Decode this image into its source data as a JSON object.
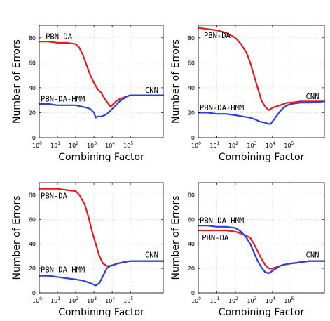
{
  "colors": {
    "PBN-DA": "#e8191d",
    "PBN-DA-HMM": "#2a3fe0"
  },
  "chart_data": [
    {
      "type": "line",
      "xlabel": "Combining Factor",
      "ylabel": "Number of Errors",
      "xscale": "log",
      "xlim": [
        0,
        6.8
      ],
      "ylim": [
        0,
        90
      ],
      "yticks": [
        0,
        20,
        40,
        60,
        80
      ],
      "xticks": [
        0,
        1,
        2,
        3,
        4,
        5
      ],
      "xtick_base": "10",
      "grid": true,
      "annotations": [
        {
          "text": "PBN-DA",
          "at": [
            0.35,
            79
          ]
        },
        {
          "text": "PBN-DA-HMM",
          "at": [
            -0.1,
            29
          ]
        },
        {
          "text": "CNN",
          "at": [
            5.8,
            36
          ]
        }
      ],
      "series": [
        {
          "name": "PBN-DA",
          "color": "#e8191d",
          "x": [
            0,
            0.5,
            1,
            1.5,
            2,
            2.2,
            2.4,
            2.6,
            2.8,
            3.0,
            3.2,
            3.4,
            3.6,
            3.8,
            3.9,
            4.0,
            4.2,
            4.4,
            4.6,
            4.8,
            5.0,
            5.5,
            6.0,
            6.8
          ],
          "values": [
            77,
            77,
            76,
            76,
            75,
            72,
            66,
            58,
            50,
            44,
            39,
            36,
            31,
            27,
            25,
            26,
            29,
            31,
            32,
            33,
            34,
            34,
            34,
            34
          ]
        },
        {
          "name": "PBN-DA-HMM",
          "color": "#2a3fe0",
          "x": [
            0,
            0.5,
            1,
            1.5,
            2,
            2.3,
            2.6,
            2.8,
            3.0,
            3.1,
            3.2,
            3.4,
            3.6,
            3.8,
            4.0,
            4.2,
            4.4,
            4.6,
            4.8,
            5.0,
            5.5,
            6.0,
            6.8
          ],
          "values": [
            27,
            27,
            26,
            26,
            26,
            25,
            24,
            23,
            20,
            16,
            17,
            17,
            18,
            20,
            23,
            26,
            29,
            31,
            33,
            34,
            34,
            34,
            34
          ]
        }
      ]
    },
    {
      "type": "line",
      "xlabel": "Combining Factor",
      "ylabel": "Number of Errors",
      "xscale": "log",
      "xlim": [
        0,
        6.8
      ],
      "ylim": [
        0,
        90
      ],
      "yticks": [
        0,
        20,
        40,
        60,
        80
      ],
      "xticks": [
        0,
        1,
        2,
        3,
        4,
        5
      ],
      "xtick_base": "10",
      "grid": true,
      "annotations": [
        {
          "text": "PBN-DA",
          "at": [
            0.3,
            80
          ]
        },
        {
          "text": "PBN-DA-HMM",
          "at": [
            -0.1,
            22
          ]
        },
        {
          "text": "CNN",
          "at": [
            5.8,
            31
          ]
        }
      ],
      "series": [
        {
          "name": "PBN-DA",
          "color": "#e8191d",
          "x": [
            0,
            0.5,
            1,
            1.5,
            2,
            2.3,
            2.6,
            2.8,
            3.0,
            3.2,
            3.4,
            3.6,
            3.8,
            4.0,
            4.2,
            4.4,
            4.6,
            4.8,
            5.0,
            5.5,
            6.0,
            6.8
          ],
          "values": [
            88,
            87,
            86,
            84,
            80,
            75,
            68,
            60,
            50,
            40,
            30,
            25,
            22,
            24,
            25,
            26,
            27,
            28,
            28,
            29,
            29,
            29
          ]
        },
        {
          "name": "PBN-DA-HMM",
          "color": "#2a3fe0",
          "x": [
            0,
            0.5,
            1,
            1.5,
            2,
            2.4,
            2.8,
            3.0,
            3.3,
            3.6,
            3.8,
            3.9,
            4.0,
            4.2,
            4.4,
            4.6,
            4.8,
            5.0,
            5.5,
            6.0,
            6.8
          ],
          "values": [
            20,
            20,
            19,
            19,
            18,
            17,
            16,
            15,
            13,
            12,
            11,
            11,
            13,
            17,
            21,
            24,
            26,
            27,
            28,
            28,
            29
          ]
        }
      ]
    },
    {
      "type": "line",
      "xlabel": "Combining Factor",
      "ylabel": "Number of Errors",
      "xscale": "log",
      "xlim": [
        0,
        6.8
      ],
      "ylim": [
        0,
        90
      ],
      "yticks": [
        0,
        20,
        40,
        60,
        80
      ],
      "xticks": [
        0,
        1,
        2,
        3,
        4,
        5
      ],
      "xtick_base": "10",
      "grid": true,
      "annotations": [
        {
          "text": "PBN-DA",
          "at": [
            -0.1,
            77
          ]
        },
        {
          "text": "PBN-DA-HMM",
          "at": [
            -0.1,
            17
          ]
        },
        {
          "text": "CNN",
          "at": [
            5.8,
            29
          ]
        }
      ],
      "series": [
        {
          "name": "PBN-DA",
          "color": "#e8191d",
          "x": [
            0,
            0.5,
            1,
            1.5,
            2,
            2.2,
            2.5,
            2.7,
            2.9,
            3.1,
            3.3,
            3.5,
            3.7,
            3.9,
            4.1,
            4.3,
            4.6,
            5.0,
            5.5,
            6.0,
            6.8
          ],
          "values": [
            85,
            85,
            85,
            84,
            83,
            80,
            72,
            62,
            50,
            40,
            30,
            24,
            22,
            22,
            23,
            24,
            25,
            26,
            26,
            26,
            26
          ]
        },
        {
          "name": "PBN-DA-HMM",
          "color": "#2a3fe0",
          "x": [
            0,
            0.5,
            1,
            1.5,
            2,
            2.4,
            2.8,
            3.1,
            3.3,
            3.5,
            3.7,
            3.9,
            4.1,
            4.3,
            4.6,
            5.0,
            5.5,
            6.0,
            6.8
          ],
          "values": [
            14,
            14,
            13,
            12,
            11,
            10,
            8,
            6,
            8,
            14,
            20,
            22,
            23,
            24,
            25,
            26,
            26,
            26,
            26
          ]
        }
      ]
    },
    {
      "type": "line",
      "xlabel": "Combining Factor",
      "ylabel": "Number of Errors",
      "xscale": "log",
      "xlim": [
        0,
        6.8
      ],
      "ylim": [
        0,
        90
      ],
      "yticks": [
        0,
        20,
        40,
        60,
        80
      ],
      "xticks": [
        0,
        1,
        2,
        3,
        4,
        5
      ],
      "xtick_base": "10",
      "grid": true,
      "annotations": [
        {
          "text": "PBN-DA-HMM",
          "at": [
            -0.1,
            57
          ]
        },
        {
          "text": "PBN-DA",
          "at": [
            0.2,
            43
          ]
        },
        {
          "text": "CNN",
          "at": [
            5.8,
            29
          ]
        }
      ],
      "series": [
        {
          "name": "PBN-DA",
          "color": "#e8191d",
          "x": [
            0,
            0.5,
            1,
            1.5,
            2,
            2.4,
            2.8,
            3.0,
            3.2,
            3.4,
            3.6,
            3.8,
            4.0,
            4.2,
            4.4,
            4.6,
            5.0,
            5.5,
            6.0,
            6.8
          ],
          "values": [
            51,
            51,
            51,
            51,
            50,
            48,
            45,
            40,
            34,
            28,
            23,
            20,
            20,
            21,
            22,
            23,
            24,
            25,
            26,
            26
          ]
        },
        {
          "name": "PBN-DA-HMM",
          "color": "#2a3fe0",
          "x": [
            0,
            0.5,
            1,
            1.5,
            2,
            2.3,
            2.6,
            2.8,
            3.0,
            3.2,
            3.4,
            3.6,
            3.8,
            4.0,
            4.2,
            4.4,
            4.6,
            5.0,
            5.5,
            6.0,
            6.8
          ],
          "values": [
            55,
            55,
            54,
            54,
            53,
            50,
            45,
            40,
            33,
            26,
            21,
            17,
            16,
            18,
            20,
            22,
            23,
            24,
            25,
            26,
            26
          ]
        }
      ]
    }
  ]
}
